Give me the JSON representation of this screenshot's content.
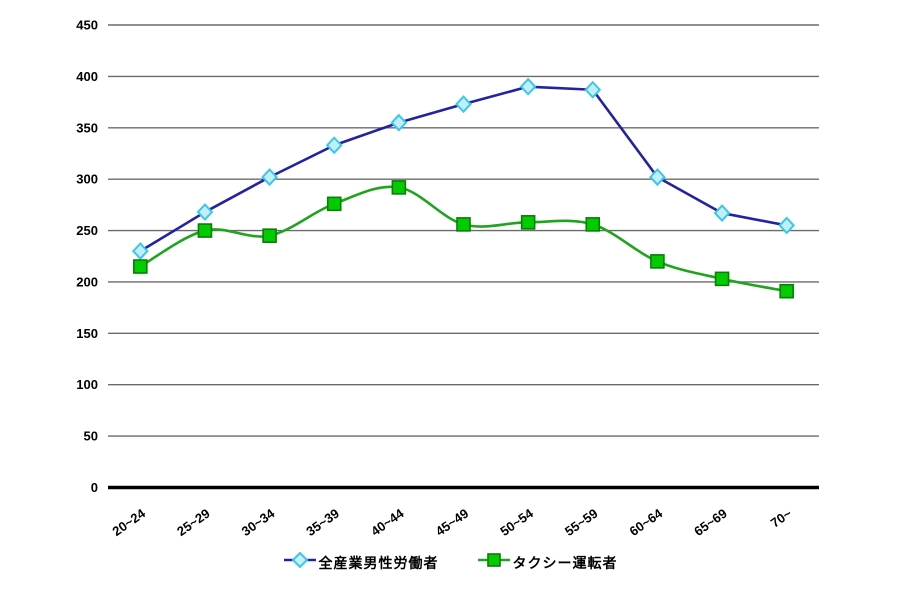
{
  "chart_data": {
    "type": "line",
    "title": "",
    "xlabel": "",
    "ylabel": "",
    "categories": [
      "20~24",
      "25~29",
      "30~34",
      "35~39",
      "40~44",
      "45~49",
      "50~54",
      "55~59",
      "60~64",
      "65~69",
      "70~"
    ],
    "series": [
      {
        "name": "全産業男性労働者",
        "marker": "diamond",
        "smooth": false,
        "line_color": "#2222A3",
        "marker_fill": "#C2EEF8",
        "marker_stroke": "#38C8E8",
        "values": [
          230,
          268,
          302,
          333,
          355,
          373,
          390,
          387,
          302,
          267,
          255
        ]
      },
      {
        "name": "タクシー運転者",
        "marker": "square",
        "smooth": true,
        "line_color": "#1FA41F",
        "marker_fill": "#00CC00",
        "marker_stroke": "#0B7D0B",
        "values": [
          215,
          250,
          245,
          276,
          292,
          256,
          258,
          256,
          220,
          203,
          191
        ]
      }
    ],
    "ylim": [
      0,
      450
    ],
    "ytick_step": 50,
    "yticks": [
      "0",
      "50",
      "100",
      "150",
      "200",
      "250",
      "300",
      "350",
      "400",
      "450"
    ],
    "grid": true,
    "legend_position": "bottom",
    "gridline_color": "#6B6B6B",
    "axis_line_color": "#000000"
  }
}
